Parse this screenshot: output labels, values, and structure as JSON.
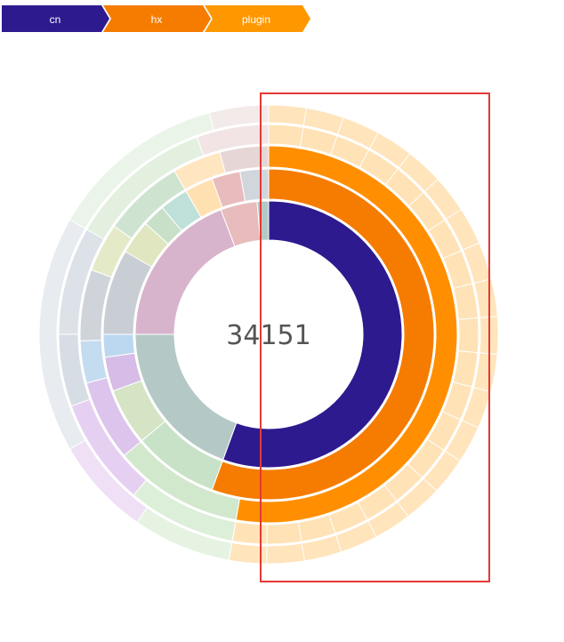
{
  "breadcrumb": {
    "items": [
      {
        "label": "cn",
        "color": "#2e1a8f"
      },
      {
        "label": "hx",
        "color": "#f57c00"
      },
      {
        "label": "plugin",
        "color": "#ff9800"
      }
    ]
  },
  "chart_data": {
    "type": "sunburst",
    "center_label": "34151",
    "highlight_color": "#e53935",
    "selection_box": {
      "from_angle_deg": 0,
      "to_angle_deg": 180
    },
    "rings": [
      {
        "level": 1,
        "segments": [
          {
            "start": 0,
            "end": 200,
            "color": "#2e1a8f"
          },
          {
            "start": 200,
            "end": 270,
            "color": "#b4c9c5"
          },
          {
            "start": 270,
            "end": 339,
            "color": "#d8b4cc"
          },
          {
            "start": 339,
            "end": 355,
            "color": "#e8bcbc"
          },
          {
            "start": 355,
            "end": 360,
            "color": "#b4c9c5"
          }
        ]
      },
      {
        "level": 2,
        "segments": [
          {
            "start": 0,
            "end": 200,
            "color": "#f57c00"
          },
          {
            "start": 200,
            "end": 230,
            "color": "#c8e2c8"
          },
          {
            "start": 230,
            "end": 250,
            "color": "#d4e4c4"
          },
          {
            "start": 250,
            "end": 262,
            "color": "#d6bce6"
          },
          {
            "start": 262,
            "end": 270,
            "color": "#bcd8f0"
          },
          {
            "start": 270,
            "end": 300,
            "color": "#c8ced4"
          },
          {
            "start": 300,
            "end": 312,
            "color": "#e0e6c0"
          },
          {
            "start": 312,
            "end": 320,
            "color": "#c8e0c8"
          },
          {
            "start": 320,
            "end": 330,
            "color": "#bfe0d8"
          },
          {
            "start": 330,
            "end": 340,
            "color": "#ffe0b0"
          },
          {
            "start": 340,
            "end": 350,
            "color": "#e8bcbc"
          },
          {
            "start": 350,
            "end": 360,
            "color": "#d0d6dc"
          }
        ]
      },
      {
        "level": 3,
        "segments": [
          {
            "start": 0,
            "end": 190,
            "color": "#ff8f00"
          },
          {
            "start": 190,
            "end": 230,
            "color": "#d2e8cc"
          },
          {
            "start": 230,
            "end": 255,
            "color": "#dcc4ec"
          },
          {
            "start": 255,
            "end": 268,
            "color": "#c4dcf0"
          },
          {
            "start": 268,
            "end": 290,
            "color": "#cfd4da"
          },
          {
            "start": 290,
            "end": 305,
            "color": "#e4eac8"
          },
          {
            "start": 305,
            "end": 330,
            "color": "#cfe4d0"
          },
          {
            "start": 330,
            "end": 345,
            "color": "#ffe6c0"
          },
          {
            "start": 345,
            "end": 360,
            "color": "#e6d6d6"
          }
        ]
      },
      {
        "level": 4,
        "segments": [
          {
            "start": 0,
            "end": 190,
            "color": "#ffe2b6"
          },
          {
            "start": 190,
            "end": 220,
            "color": "#dcefd8"
          },
          {
            "start": 220,
            "end": 250,
            "color": "#e6d0f2"
          },
          {
            "start": 250,
            "end": 270,
            "color": "#d6dde4"
          },
          {
            "start": 270,
            "end": 300,
            "color": "#dde2e8"
          },
          {
            "start": 300,
            "end": 340,
            "color": "#e3f0e0"
          },
          {
            "start": 340,
            "end": 360,
            "color": "#f2e4e4"
          }
        ]
      },
      {
        "level": 5,
        "segments": [
          {
            "start": 0,
            "end": 190,
            "color": "#ffe4bc"
          },
          {
            "start": 190,
            "end": 215,
            "color": "#e6f3e2"
          },
          {
            "start": 215,
            "end": 240,
            "color": "#efe0f6"
          },
          {
            "start": 240,
            "end": 300,
            "color": "#e8ecf0"
          },
          {
            "start": 300,
            "end": 345,
            "color": "#eaf4e8"
          },
          {
            "start": 345,
            "end": 360,
            "color": "#f3eaea"
          }
        ]
      }
    ]
  }
}
